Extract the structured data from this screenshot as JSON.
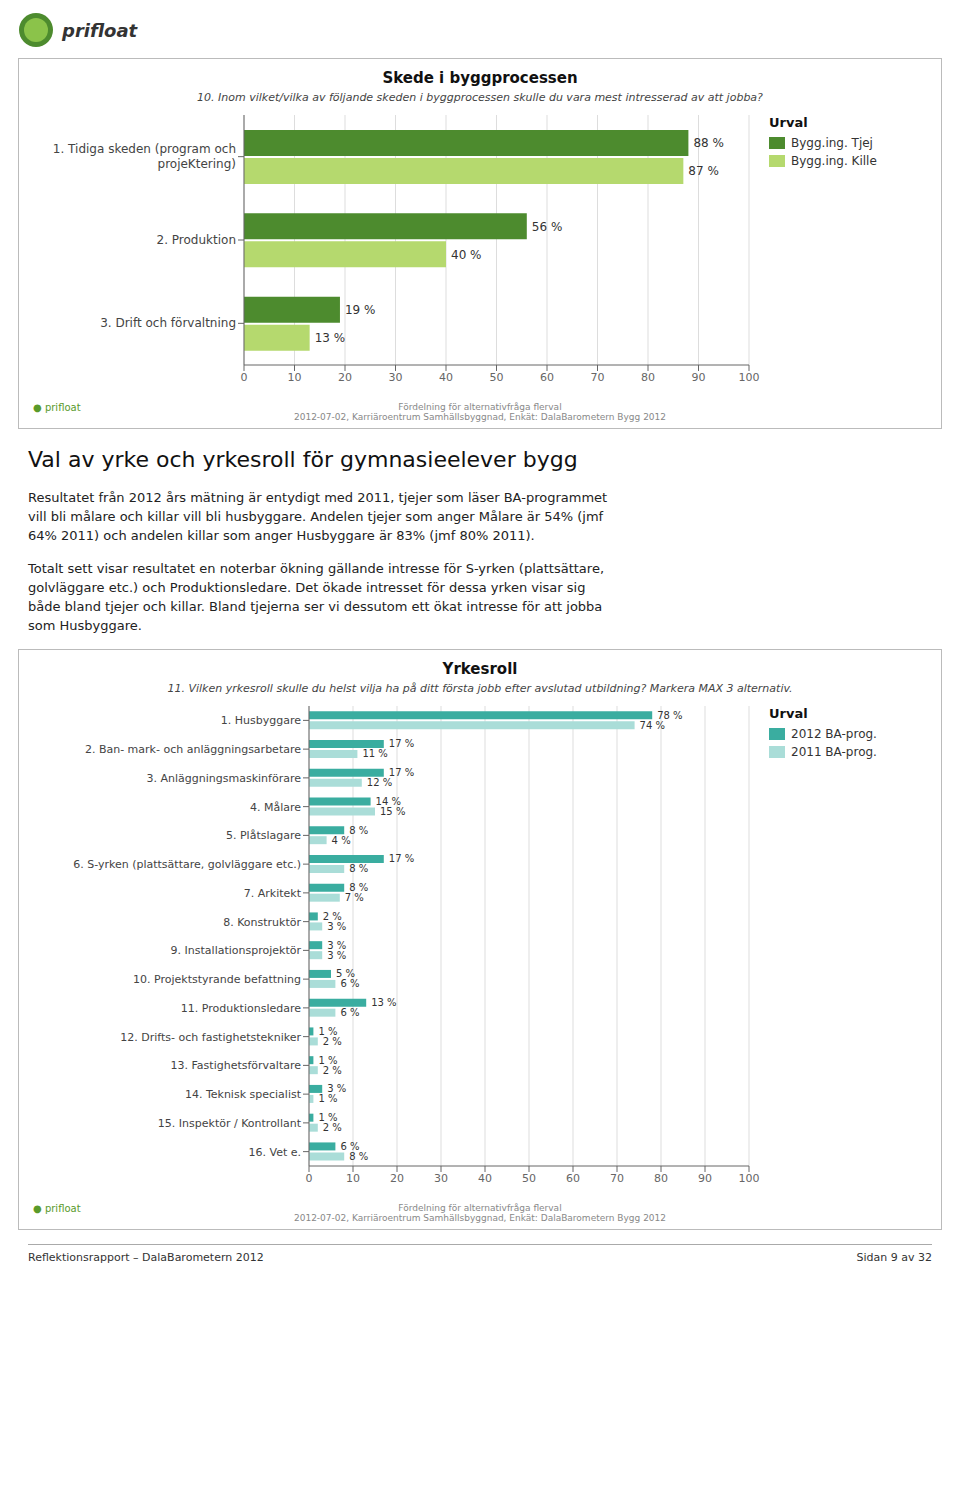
{
  "logo": "prifloat",
  "badge": "● prifloat",
  "source_lines": [
    "Fördelning för alternativfråga flerval",
    "2012-07-02, Karriäroentrum Samhällsbyggnad, Enkät: DalaBarometern Bygg 2012"
  ],
  "heading": "Val av yrke och yrkesroll för gymnasieelever bygg",
  "paragraphs": [
    [
      "Resultatet från 2012 års mätning är entydigt med 2011, tjejer som läser BA-programmet",
      "vill bli målare och killar vill bli husbyggare. Andelen tjejer som anger Målare är 54% (jmf",
      "64% 2011) och andelen killar som anger Husbyggare är 83% (jmf 80% 2011)."
    ],
    [
      "Totalt sett visar resultatet en noterbar ökning gällande intresse för S-yrken (plattsättare,",
      "golvläggare etc.) och Produktionsledare. Det ökade intresset för dessa yrken visar sig",
      "både bland tjejer och killar. Bland tjejerna ser vi dessutom ett ökat intresse för att jobba",
      "som Husbyggare."
    ]
  ],
  "footer": {
    "left": "Reflektionsrapport – DalaBarometern 2012",
    "right": "Sidan 9 av 32"
  },
  "chart_data": [
    {
      "type": "bar",
      "orientation": "horizontal",
      "title": "Skede i byggprocessen",
      "subtitle": "10. Inom vilket/vilka av följande skeden i byggprocessen skulle du vara mest intresserad av att jobba?",
      "categories": [
        "1. Tidiga skeden (program och\nprojeKtering)",
        "2. Produktion",
        "3. Drift och förvaltning"
      ],
      "series": [
        {
          "name": "Bygg.ing. Tjej",
          "color": "#4d8b2e",
          "values": [
            88,
            56,
            19
          ],
          "value_labels": [
            "88 %",
            "56 %",
            "19 %"
          ]
        },
        {
          "name": "Bygg.ing. Kille",
          "color": "#b5d96e",
          "values": [
            87,
            40,
            13
          ],
          "value_labels": [
            "87 %",
            "40 %",
            "13 %"
          ]
        }
      ],
      "legend": "right",
      "legend_title": "Urval",
      "xlim": [
        0,
        100
      ],
      "xticks": [
        0,
        10,
        20,
        30,
        40,
        50,
        60,
        70,
        80,
        90,
        100
      ],
      "grid": true
    },
    {
      "type": "bar",
      "orientation": "horizontal",
      "title": "Yrkesroll",
      "subtitle": "11. Vilken yrkesroll skulle du helst vilja ha på ditt första jobb efter avslutad utbildning? Markera MAX 3 alternativ.",
      "categories": [
        "1. Husbyggare",
        "2. Ban- mark- och anläggningsarbetare",
        "3. Anläggningsmaskinförare",
        "4. Målare",
        "5. Plåtslagare",
        "6. S-yrken (plattsättare, golvläggare etc.)",
        "7. Arkitekt",
        "8. Konstruktör",
        "9. Installationsprojektör",
        "10. Projektstyrande befattning",
        "11. Produktionsledare",
        "12. Drifts- och fastighetstekniker",
        "13. Fastighetsförvaltare",
        "14. Teknisk specialist",
        "15. Inspektör / Kontrollant",
        "16. Vet e."
      ],
      "series": [
        {
          "name": "2012 BA-prog.",
          "color": "#3aada0",
          "values": [
            78,
            17,
            17,
            14,
            8,
            17,
            8,
            2,
            3,
            5,
            13,
            1,
            1,
            3,
            1,
            6
          ],
          "value_labels": [
            "78 %",
            "17 %",
            "17 %",
            "14 %",
            "8 %",
            "17 %",
            "8 %",
            "2 %",
            "3 %",
            "5 %",
            "13 %",
            "1 %",
            "1 %",
            "3 %",
            "1 %",
            "6 %"
          ]
        },
        {
          "name": "2011 BA-prog.",
          "color": "#aaddd8",
          "values": [
            74,
            11,
            12,
            15,
            4,
            8,
            7,
            3,
            3,
            6,
            6,
            2,
            2,
            1,
            2,
            8
          ],
          "value_labels": [
            "74 %",
            "11 %",
            "12 %",
            "15 %",
            "4 %",
            "8 %",
            "7 %",
            "3 %",
            "3 %",
            "6 %",
            "6 %",
            "2 %",
            "2 %",
            "1 %",
            "2 %",
            "8 %"
          ]
        }
      ],
      "legend": "right",
      "legend_title": "Urval",
      "xlim": [
        0,
        100
      ],
      "xticks": [
        0,
        10,
        20,
        30,
        40,
        50,
        60,
        70,
        80,
        90,
        100
      ],
      "grid": true
    }
  ]
}
